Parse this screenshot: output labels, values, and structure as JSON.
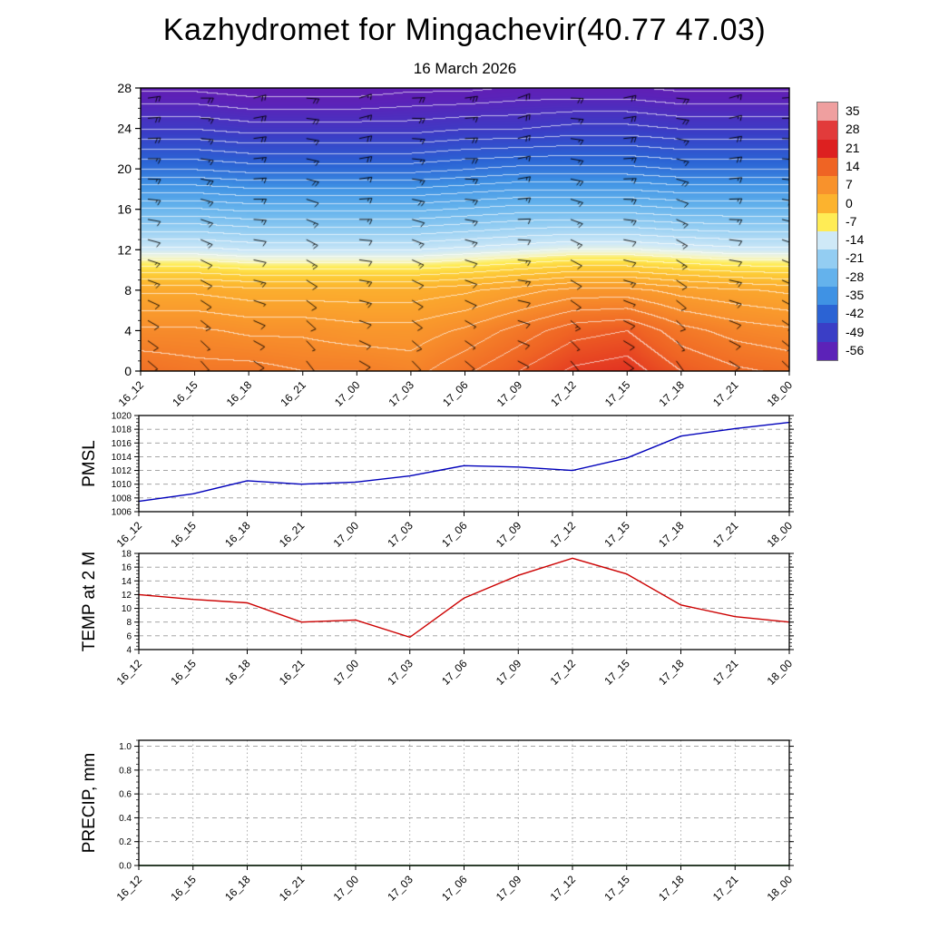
{
  "header": {
    "title": "Kazhydromet for Mingachevir(40.77 47.03)",
    "subtitle": "16 March 2026"
  },
  "chart_data": [
    {
      "id": "temperature_height_cross_section",
      "type": "heatmap",
      "x_categories": [
        "16_12",
        "16_15",
        "16_18",
        "16_21",
        "17_00",
        "17_03",
        "17_06",
        "17_09",
        "17_12",
        "17_15",
        "17_18",
        "17_21",
        "18_00"
      ],
      "y_ticks": [
        0,
        4,
        8,
        12,
        16,
        20,
        24,
        28
      ],
      "y_tick_labels": [
        "0",
        "4",
        "8",
        "12",
        "16",
        "20",
        "24",
        "28"
      ],
      "y_range": [
        0,
        28
      ],
      "grid_heights": [
        0,
        4,
        8,
        12,
        16,
        20,
        24,
        28
      ],
      "temps_by_height": [
        [
          12,
          11,
          11,
          10,
          10,
          9,
          12,
          15,
          18,
          19,
          15,
          13,
          12
        ],
        [
          8,
          8,
          7,
          7,
          6,
          6,
          8,
          11,
          14,
          15,
          11,
          9,
          8
        ],
        [
          2,
          2,
          1,
          1,
          1,
          1,
          2,
          4,
          6,
          6,
          4,
          3,
          2
        ],
        [
          -14,
          -14,
          -15,
          -15,
          -15,
          -15,
          -14,
          -13,
          -12,
          -12,
          -13,
          -14,
          -14
        ],
        [
          -27,
          -27,
          -28,
          -28,
          -28,
          -28,
          -27,
          -26,
          -26,
          -26,
          -27,
          -27,
          -27
        ],
        [
          -40,
          -40,
          -41,
          -41,
          -41,
          -41,
          -40,
          -39,
          -39,
          -39,
          -40,
          -40,
          -40
        ],
        [
          -50,
          -50,
          -51,
          -51,
          -51,
          -51,
          -50,
          -50,
          -49,
          -49,
          -50,
          -50,
          -50
        ],
        [
          -58,
          -58,
          -59,
          -59,
          -59,
          -58,
          -58,
          -57,
          -57,
          -57,
          -58,
          -58,
          -58
        ]
      ],
      "contour_interval": 2.5,
      "contour_color": "#ffffff",
      "colormap_stops": [
        [
          -63,
          "#6a18a8"
        ],
        [
          -56,
          "#5c22b8"
        ],
        [
          -49,
          "#3a3ec6"
        ],
        [
          -42,
          "#2b63d4"
        ],
        [
          -35,
          "#3f92e4"
        ],
        [
          -28,
          "#64b2ec"
        ],
        [
          -21,
          "#93cdf2"
        ],
        [
          -14,
          "#cfe9f7"
        ],
        [
          -11,
          "#f2f6d8"
        ],
        [
          -8,
          "#ffec55"
        ],
        [
          -5,
          "#fdd23a"
        ],
        [
          0,
          "#fcb32e"
        ],
        [
          7,
          "#f8922c"
        ],
        [
          14,
          "#ef6424"
        ],
        [
          21,
          "#dd2020"
        ],
        [
          28,
          "#e23b3b"
        ],
        [
          35,
          "#ef9f9f"
        ]
      ],
      "colorbar": {
        "tick_labels": [
          "35",
          "28",
          "21",
          "14",
          "7",
          "0",
          "-7",
          "-14",
          "-21",
          "-28",
          "-35",
          "-42",
          "-49",
          "-56"
        ],
        "cell_colors": [
          "#ef9f9f",
          "#e23b3b",
          "#dd2020",
          "#ef6424",
          "#f8922c",
          "#fcb32e",
          "#ffec55",
          "#cfe9f7",
          "#93cdf2",
          "#64b2ec",
          "#3f92e4",
          "#2b63d4",
          "#3a3ec6",
          "#5c22b8"
        ]
      },
      "wind_barbs": {
        "barb_color": "#000000",
        "levels": [
          1,
          3,
          5,
          7,
          9,
          11,
          13,
          15,
          17,
          19,
          21,
          23,
          25,
          27
        ],
        "speed_kt_by_level": [
          8,
          10,
          12,
          12,
          14,
          14,
          15,
          16,
          17,
          18,
          18,
          20,
          20,
          22
        ],
        "dir_deg_by_level": [
          130,
          125,
          120,
          115,
          110,
          108,
          105,
          100,
          96,
          92,
          90,
          88,
          85,
          82
        ],
        "dir_jitter_by_time": [
          0,
          8,
          -6,
          12,
          -10,
          6,
          0,
          -12,
          10,
          -4,
          14,
          -8,
          4
        ]
      }
    },
    {
      "id": "pmsl",
      "type": "line",
      "ylabel": "PMSL",
      "line_color": "#0000bb",
      "x_categories": [
        "16_12",
        "16_15",
        "16_18",
        "16_21",
        "17_00",
        "17_03",
        "17_06",
        "17_09",
        "17_12",
        "17_15",
        "17_18",
        "17_21",
        "18_00"
      ],
      "y_ticks": [
        1006,
        1008,
        1010,
        1012,
        1014,
        1016,
        1018,
        1020
      ],
      "y_tick_labels": [
        "1006",
        "1008",
        "1010",
        "1012",
        "1014",
        "1016",
        "1018",
        "1020"
      ],
      "y_range": [
        1006,
        1020
      ],
      "values": [
        1007.5,
        1008.6,
        1010.5,
        1010.0,
        1010.3,
        1011.2,
        1012.7,
        1012.5,
        1012.0,
        1013.8,
        1017.0,
        1018.1,
        1019.0
      ]
    },
    {
      "id": "temp_2m",
      "type": "line",
      "ylabel": "TEMP at 2 M",
      "line_color": "#cc0000",
      "x_categories": [
        "16_12",
        "16_15",
        "16_18",
        "16_21",
        "17_00",
        "17_03",
        "17_06",
        "17_09",
        "17_12",
        "17_15",
        "17_18",
        "17_21",
        "18_00"
      ],
      "y_ticks": [
        4,
        6,
        8,
        10,
        12,
        14,
        16,
        18
      ],
      "y_tick_labels": [
        "4",
        "6",
        "8",
        "10",
        "12",
        "14",
        "16",
        "18"
      ],
      "y_range": [
        4,
        18
      ],
      "values": [
        12.0,
        11.3,
        10.8,
        8.0,
        8.3,
        5.8,
        11.5,
        14.8,
        17.3,
        15.0,
        10.5,
        8.8,
        8.0
      ]
    },
    {
      "id": "precip",
      "type": "line",
      "ylabel": "PRECIP, mm",
      "line_color": "#0c6b0c",
      "x_categories": [
        "16_12",
        "16_15",
        "16_18",
        "16_21",
        "17_00",
        "17_03",
        "17_06",
        "17_09",
        "17_12",
        "17_15",
        "17_18",
        "17_21",
        "18_00"
      ],
      "y_ticks": [
        0,
        0.2,
        0.4,
        0.6,
        0.8,
        1.0
      ],
      "y_tick_labels": [
        "0.0",
        "0.2",
        "0.4",
        "0.6",
        "0.8",
        "1.0"
      ],
      "y_range": [
        0,
        1.05
      ],
      "values": [
        0,
        0,
        0,
        0,
        0,
        0,
        0,
        0,
        0,
        0,
        0,
        0,
        0
      ]
    }
  ]
}
